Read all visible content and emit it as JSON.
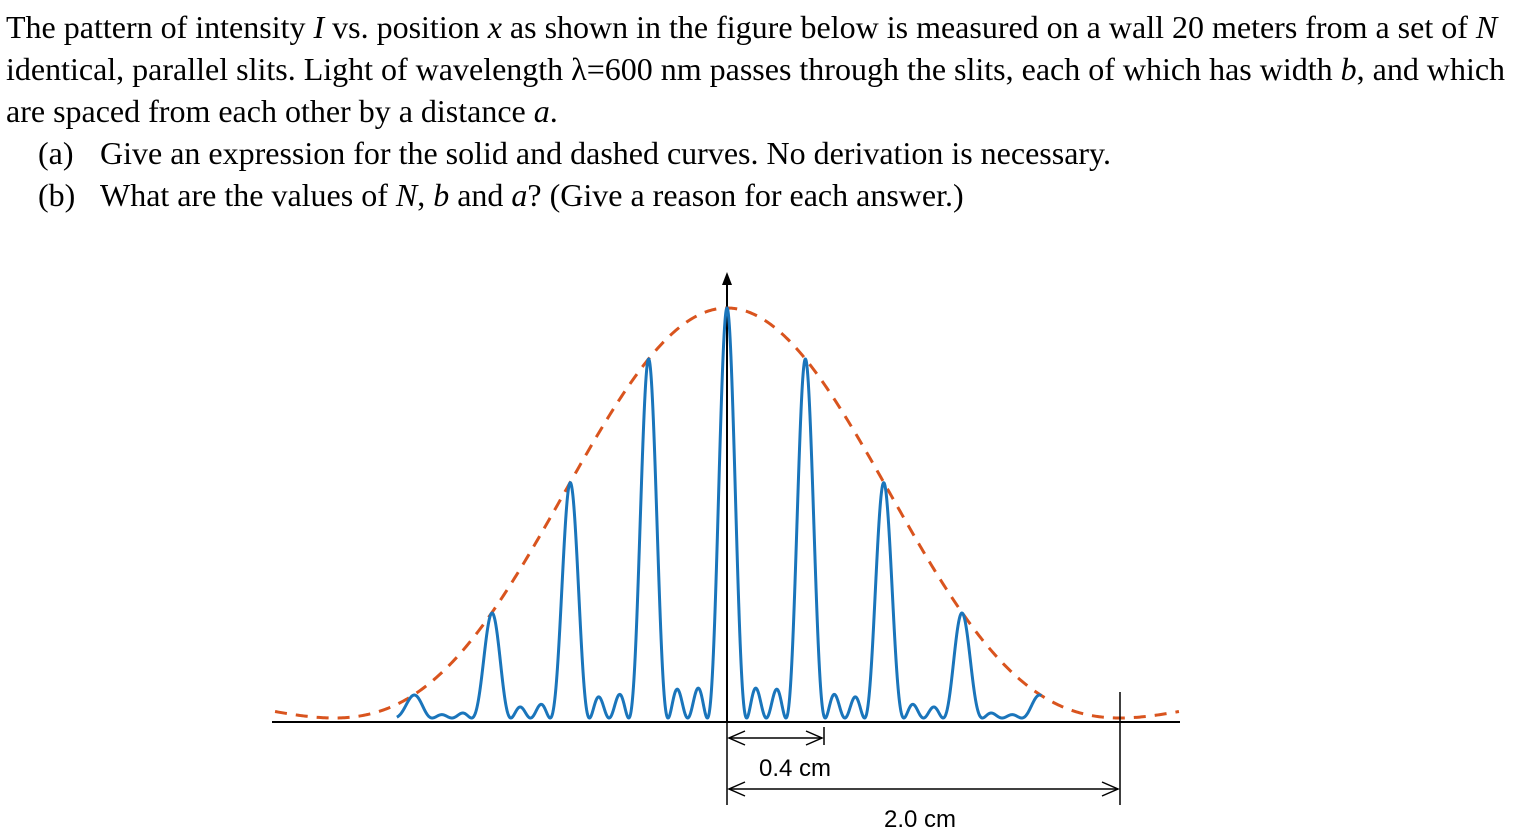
{
  "problem": {
    "paragraph": {
      "p1": "The pattern of intensity ",
      "var_I": "I",
      "p2": " vs. position ",
      "var_x": "x",
      "p3": " as shown in the figure below is measured on a wall 20 meters from a set of ",
      "var_N": "N",
      "p4": " identical, parallel slits. Light of wavelength λ=600 nm passes through the slits, each of which has width ",
      "var_b": "b",
      "p5": ", and which are spaced from each other by a distance ",
      "var_a": "a",
      "p6": "."
    },
    "part_a": {
      "label": "(a)",
      "text": "Give an expression for the solid and dashed curves. No derivation is necessary."
    },
    "part_b": {
      "label": "(b)",
      "t1": "What are the values of ",
      "var_N": "N",
      "t2": ", ",
      "var_b": "b",
      "t3": " and ",
      "var_a": "a",
      "t4": "? (Give a reason for each answer.)"
    }
  },
  "figure": {
    "dim_small_label": "0.4 cm",
    "dim_large_label": "2.0 cm",
    "solid_color": "#1a75bb",
    "dashed_color": "#d9541e",
    "chart_data": {
      "type": "line",
      "x_unit": "cm",
      "xlim": [
        -1.6,
        1.6
      ],
      "ylim": [
        0,
        1
      ],
      "principal_max_spacing": 0.4,
      "envelope_first_zero": 2.0,
      "slit_count": 4,
      "series": [
        {
          "style": "solid",
          "description_formula": "I(x) = sinc^2(pi*x/2.0) * [sin(N*pi*x/0.4)/(N*sin(pi*x/0.4))]^2"
        },
        {
          "style": "dashed",
          "description_formula": "I(x) = sinc^2(pi*x/2.0)"
        }
      ]
    }
  }
}
